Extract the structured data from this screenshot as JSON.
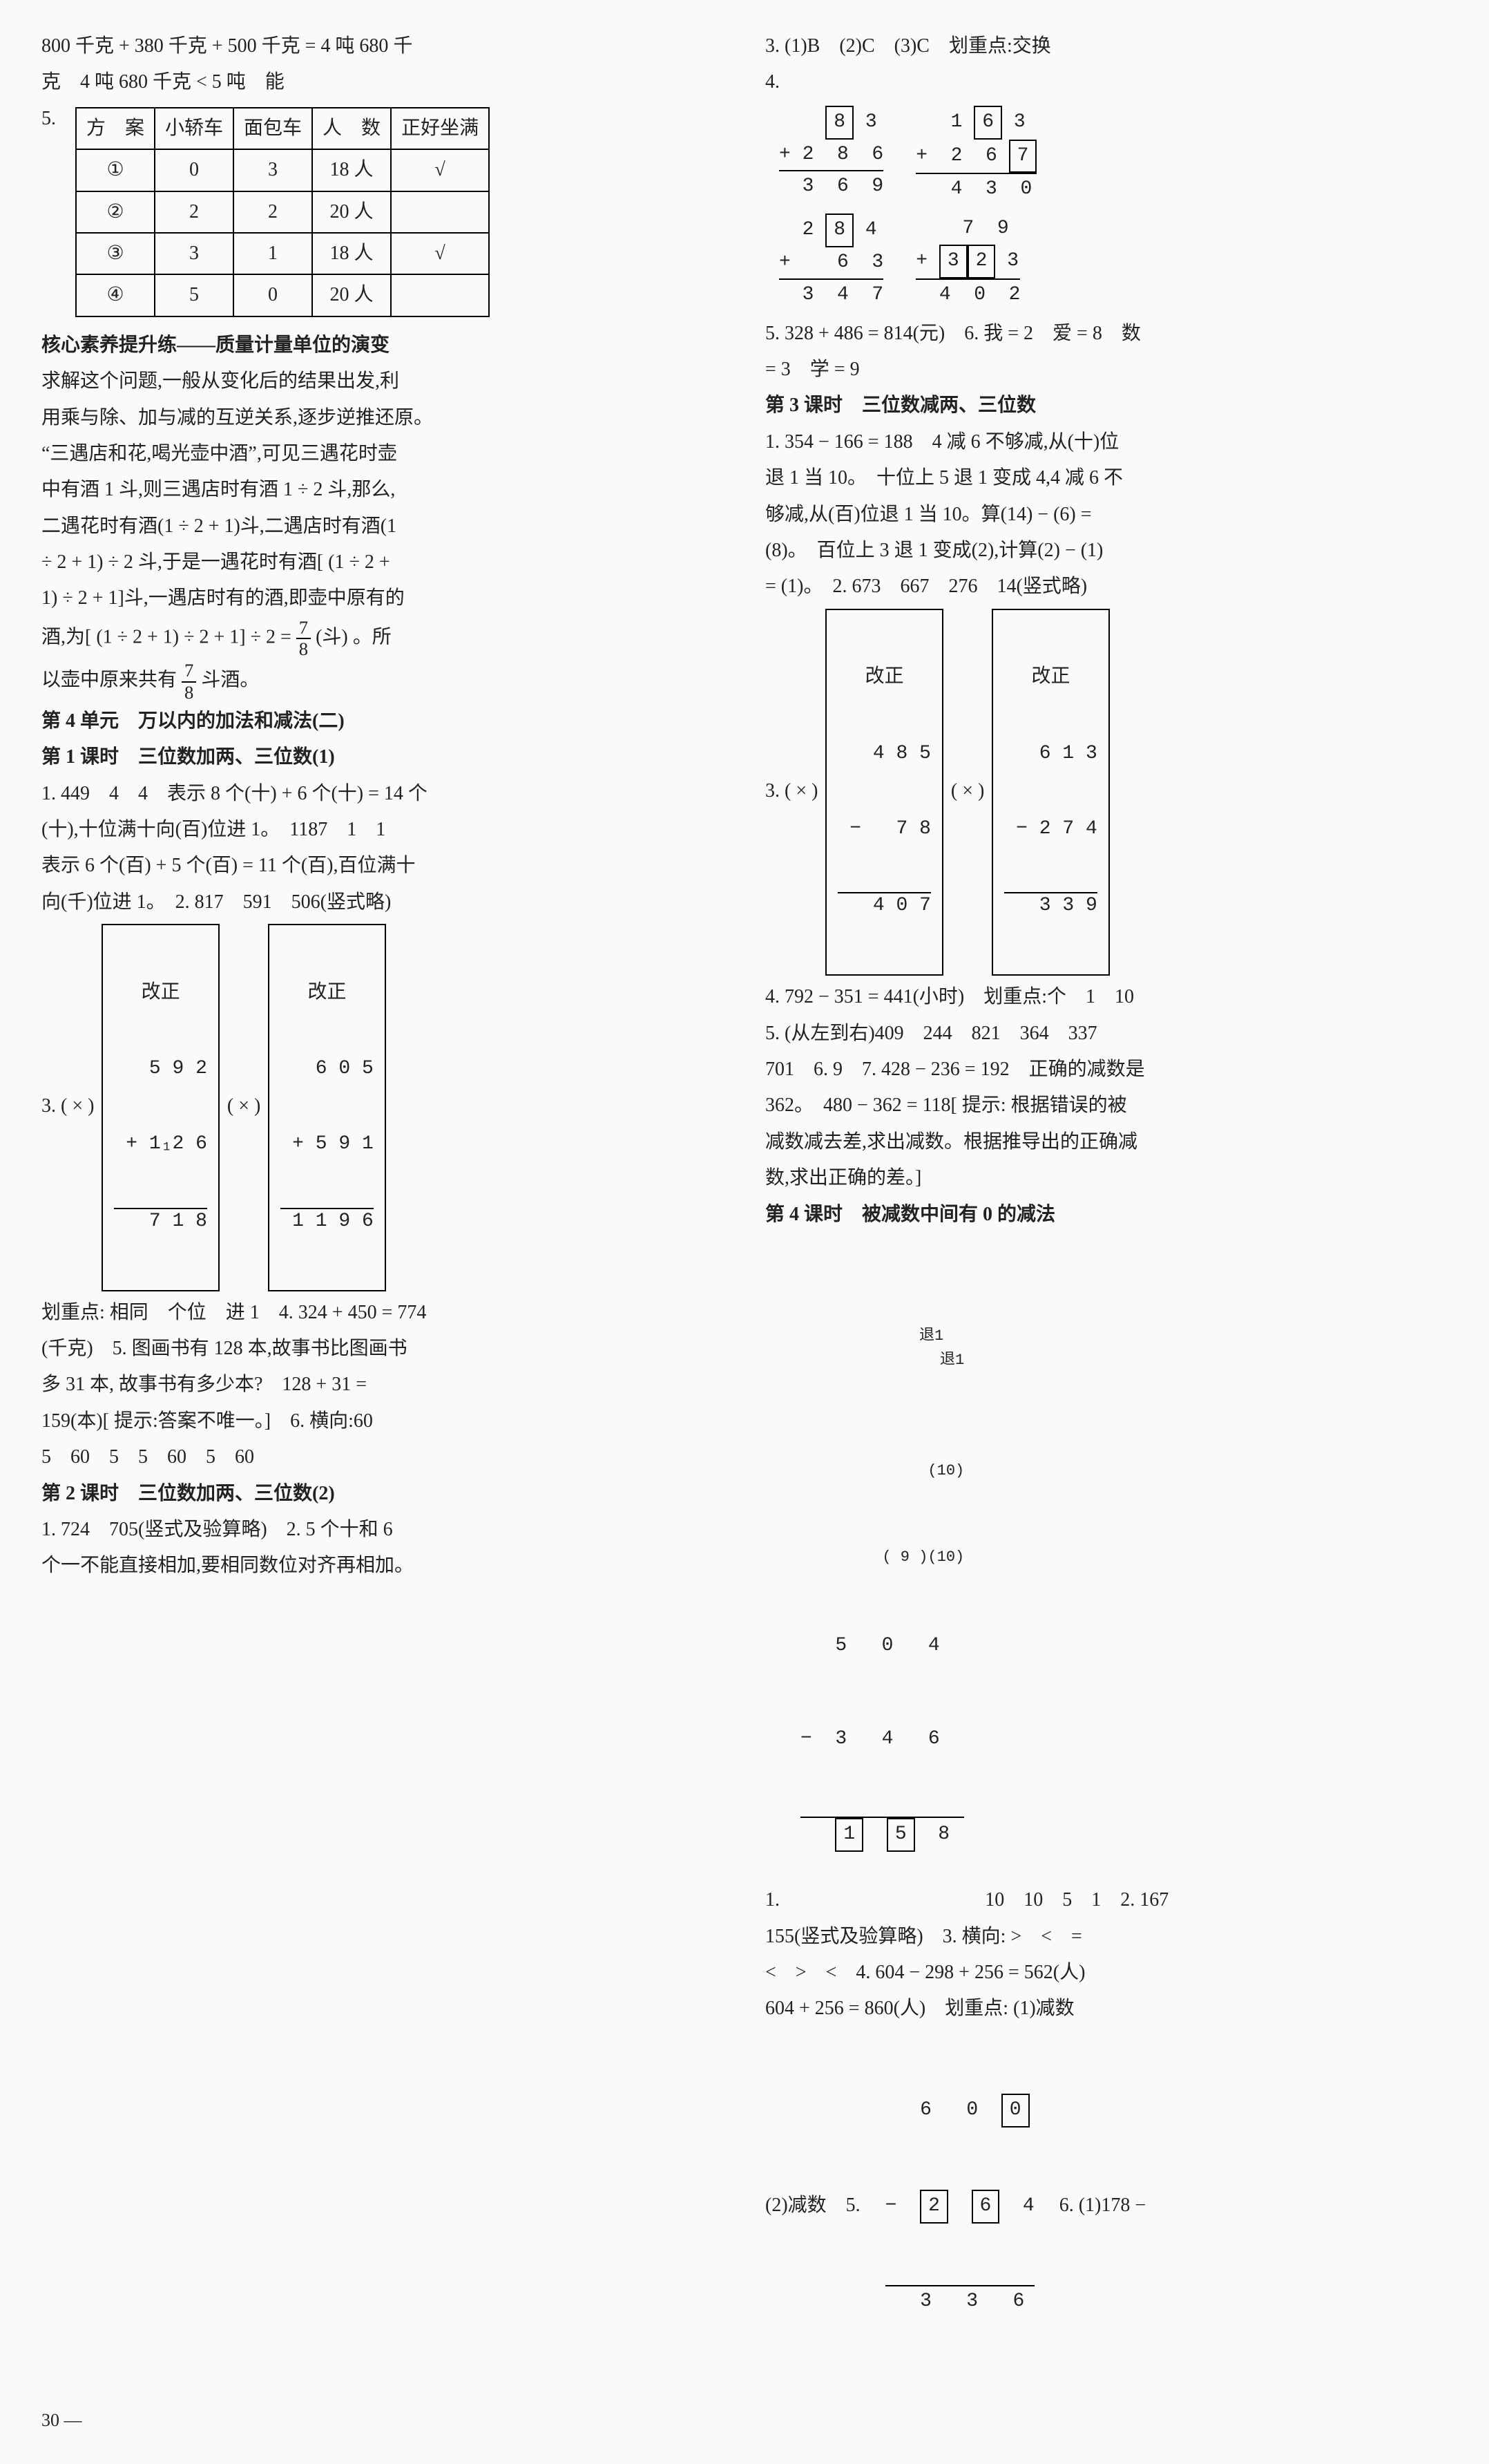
{
  "left": {
    "line1": "800 千克 + 380 千克 + 500 千克 = 4 吨 680 千",
    "line2": "克　4 吨 680 千克 < 5 吨　能",
    "table_label": "5.",
    "table": {
      "headers": [
        "方　案",
        "小轿车",
        "面包车",
        "人　数",
        "正好坐满"
      ],
      "rows": [
        [
          "①",
          "0",
          "3",
          "18 人",
          "√"
        ],
        [
          "②",
          "2",
          "2",
          "20 人",
          ""
        ],
        [
          "③",
          "3",
          "1",
          "18 人",
          "√"
        ],
        [
          "④",
          "5",
          "0",
          "20 人",
          ""
        ]
      ]
    },
    "hexin_title": "核心素养提升练——质量计量单位的演变",
    "hexin_p1": "求解这个问题,一般从变化后的结果出发,利",
    "hexin_p2": "用乘与除、加与减的互逆关系,逐步逆推还原。",
    "hexin_p3": "“三遇店和花,喝光壶中酒”,可见三遇花时壶",
    "hexin_p4": "中有酒 1 斗,则三遇店时有酒 1 ÷ 2 斗,那么,",
    "hexin_p5": "二遇花时有酒(1 ÷ 2 + 1)斗,二遇店时有酒(1",
    "hexin_p6": "÷ 2 + 1) ÷ 2 斗,于是一遇花时有酒[ (1 ÷ 2 +",
    "hexin_p7": "1) ÷ 2 + 1]斗,一遇店时有的酒,即壶中原有的",
    "hexin_p8a": "酒,为[ (1 ÷ 2 + 1) ÷ 2 + 1] ÷ 2 = ",
    "hexin_p8b": "(斗) 。所",
    "hexin_p9a": "以壶中原来共有",
    "hexin_p9b": "斗酒。",
    "frac": {
      "num": "7",
      "den": "8"
    },
    "unit4_title": "第 4 单元　万以内的加法和减法(二)",
    "k1_title": "第 1 课时　三位数加两、三位数(1)",
    "k1_l1": "1. 449　4　4　表示 8 个(十) + 6 个(十) = 14 个",
    "k1_l2": "(十),十位满十向(百)位进 1。　1187　1　1",
    "k1_l3": "表示 6 个(百) + 5 个(百) = 11 个(百),百位满十",
    "k1_l4": "向(千)位进 1。　2. 817　591　506(竖式略)",
    "k1_calc_label": "3. ( × )",
    "k1_calc1": {
      "title": "改正",
      "r1": "  5 9 2",
      "r2": "+ 1₁2 6",
      "r3": "  7 1 8"
    },
    "k1_calc_mid": "( × )",
    "k1_calc2": {
      "title": "改正",
      "r1": "  6 0 5",
      "r2": "+ 5 9 1",
      "r3": "1 1 9 6"
    },
    "k1_l5": "划重点: 相同　个位　进 1　4. 324 + 450 = 774",
    "k1_l6": "(千克)　5. 图画书有 128 本,故事书比图画书",
    "k1_l7": "多 31 本, 故事书有多少本?　128 + 31 =",
    "k1_l8": "159(本)[ 提示:答案不唯一。]　6. 横向:60",
    "k1_l9": "5　60　5　5　60　5　60",
    "k2_title": "第 2 课时　三位数加两、三位数(2)",
    "k2_l1": "1. 724　705(竖式及验算略)　2. 5 个十和 6",
    "k2_l2": "个一不能直接相加,要相同数位对齐再相加。"
  },
  "right": {
    "l1": "3. (1)B　(2)C　(3)C　划重点:交换",
    "l2": "4.",
    "add1": {
      "a": "    [8] 3",
      "b": "+ 2  8  6",
      "s": "  3  6  9"
    },
    "add2": {
      "a": "   1 [6] 3",
      "b": "+  2  6 [7]",
      "s": "   4  3  0"
    },
    "add3": {
      "a": "  2 [8] 4",
      "b": "+    6  3",
      "s": "  3  4  7"
    },
    "add4": {
      "a": "    7  9",
      "b": "+ [3][2] 3",
      "s": "  4  0  2"
    },
    "l3": "5. 328 + 486 = 814(元)　6. 我 = 2　爱 = 8　数",
    "l4": "= 3　学 = 9",
    "k3_title": "第 3 课时　三位数减两、三位数",
    "k3_l1": "1. 354 − 166 = 188　4 减 6 不够减,从(十)位",
    "k3_l2": "退 1 当 10。　十位上 5 退 1 变成 4,4 减 6 不",
    "k3_l3": "够减,从(百)位退 1 当 10。算(14) − (6) =",
    "k3_l4": "(8)。　百位上 3 退 1 变成(2),计算(2) − (1)",
    "k3_l5": "= (1)。　2. 673　667　276　14(竖式略)",
    "k3_calc_label": "3. ( × )",
    "k3_calc1": {
      "title": "改正",
      "r1": "  4 8 5",
      "r2": "−   7 8",
      "r3": "  4 0 7"
    },
    "k3_calc_mid": "( × )",
    "k3_calc2": {
      "title": "改正",
      "r1": "  6 1 3",
      "r2": "− 2 7 4",
      "r3": "  3 3 9"
    },
    "k3_l6": "4. 792 − 351 = 441(小时)　划重点:个　1　10",
    "k3_l7": "5. (从左到右)409　244　821　364　337",
    "k3_l8": "701　6. 9　7. 428 − 236 = 192　正确的减数是",
    "k3_l9": "362。　480 − 362 = 118[ 提示: 根据错误的被",
    "k3_l10": "减数减去差,求出减数。根据推导出的正确减",
    "k3_l11": "数,求出正确的差。]",
    "k4_title": "第 4 课时　被减数中间有 0 的减法",
    "k4_sub": {
      "annot1": "退1",
      "annot2": "退1",
      "c1": "(10)",
      "c2": "( 9 )(10)",
      "top": "   5   0   4",
      "minus": "−  3   4   6",
      "label_left": "1.",
      "label_right": "10　10　5　1　2. 167",
      "res_a": "1",
      "res_b": "5",
      "res_c": "8"
    },
    "k4_l1": "155(竖式及验算略)　3. 横向: >　<　=",
    "k4_l2": "<　>　<　4. 604 − 298 + 256 = 562(人)",
    "k4_l3": "604 + 256 = 860(人)　划重点: (1)减数",
    "k4_final": {
      "label_left": "(2)减数　5.",
      "top_a": "6",
      "top_b": "0",
      "top_c": "0",
      "mid_a": "2",
      "mid_b": "6",
      "mid_c": "4",
      "bot": "3   3   6",
      "label_right": "6. (1)178 −"
    }
  },
  "pagenum": "30 —"
}
